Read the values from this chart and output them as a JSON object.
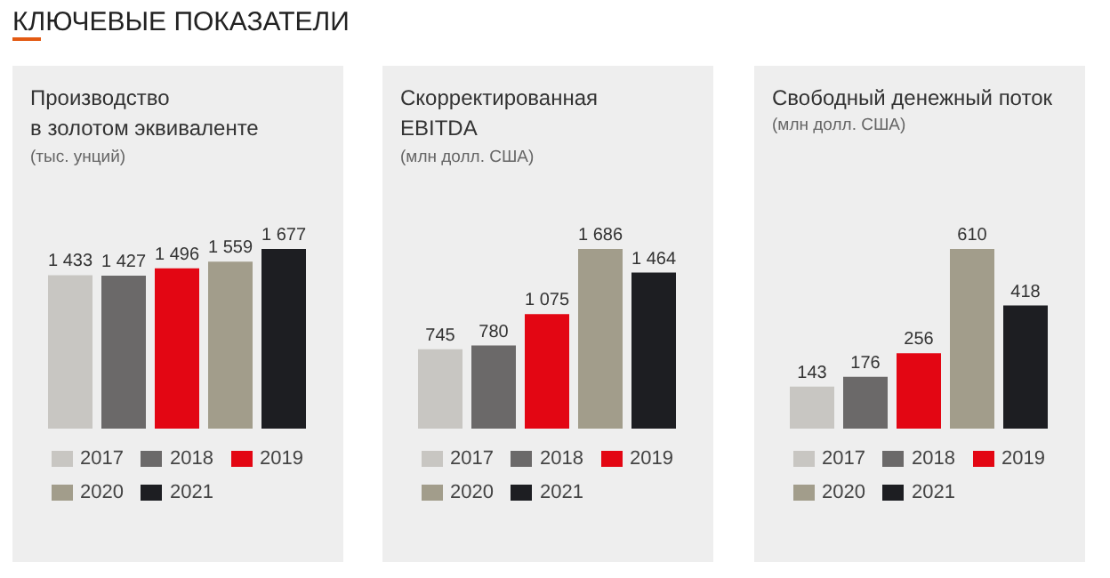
{
  "chart_data": [
    {
      "type": "bar",
      "title": "Производство\nв золотом эквиваленте",
      "subtitle": "(тыс. унций)",
      "annotations": [
        "КЛЮЧЕВЫЕ ПОКАЗАТЕЛИ"
      ],
      "categories": [
        null
      ],
      "legend": "bottom",
      "tick_labels": false,
      "series": [
        {
          "name": "2017",
          "color": "#c8c6c2",
          "values": [
            1433
          ],
          "value_labels": [
            "1 433"
          ]
        },
        {
          "name": "2018",
          "color": "#6b6969",
          "values": [
            1427
          ],
          "value_labels": [
            "1 427"
          ]
        },
        {
          "name": "2019",
          "color": "#e30613",
          "values": [
            1496
          ],
          "value_labels": [
            "1 496"
          ]
        },
        {
          "name": "2020",
          "color": "#a29d8b",
          "values": [
            1559
          ],
          "value_labels": [
            "1 559"
          ]
        },
        {
          "name": "2021",
          "color": "#1d1e22",
          "values": [
            1677
          ],
          "value_labels": [
            "1 677"
          ]
        }
      ]
    },
    {
      "type": "bar",
      "title": "Скорректированная\nEBITDA",
      "subtitle": "(млн долл. США)",
      "categories": [
        null
      ],
      "legend": "bottom",
      "tick_labels": false,
      "series": [
        {
          "name": "2017",
          "color": "#c8c6c2",
          "values": [
            745
          ],
          "value_labels": [
            "745"
          ]
        },
        {
          "name": "2018",
          "color": "#6b6969",
          "values": [
            780
          ],
          "value_labels": [
            "780"
          ]
        },
        {
          "name": "2019",
          "color": "#e30613",
          "values": [
            1075
          ],
          "value_labels": [
            "1 075"
          ]
        },
        {
          "name": "2020",
          "color": "#a29d8b",
          "values": [
            1686
          ],
          "value_labels": [
            "1 686"
          ]
        },
        {
          "name": "2021",
          "color": "#1d1e22",
          "values": [
            1464
          ],
          "value_labels": [
            "1 464"
          ]
        }
      ]
    },
    {
      "type": "bar",
      "title": "Свободный денежный поток",
      "subtitle": "(млн долл. США)",
      "categories": [
        null
      ],
      "legend": "bottom",
      "tick_labels": false,
      "series": [
        {
          "name": "2017",
          "color": "#c8c6c2",
          "values": [
            143
          ],
          "value_labels": [
            "143"
          ]
        },
        {
          "name": "2018",
          "color": "#6b6969",
          "values": [
            176
          ],
          "value_labels": [
            "176"
          ]
        },
        {
          "name": "2019",
          "color": "#e30613",
          "values": [
            256
          ],
          "value_labels": [
            "256"
          ]
        },
        {
          "name": "2020",
          "color": "#a29d8b",
          "values": [
            610
          ],
          "value_labels": [
            "610"
          ]
        },
        {
          "name": "2021",
          "color": "#1d1e22",
          "values": [
            418
          ],
          "value_labels": [
            "418"
          ]
        }
      ]
    }
  ]
}
